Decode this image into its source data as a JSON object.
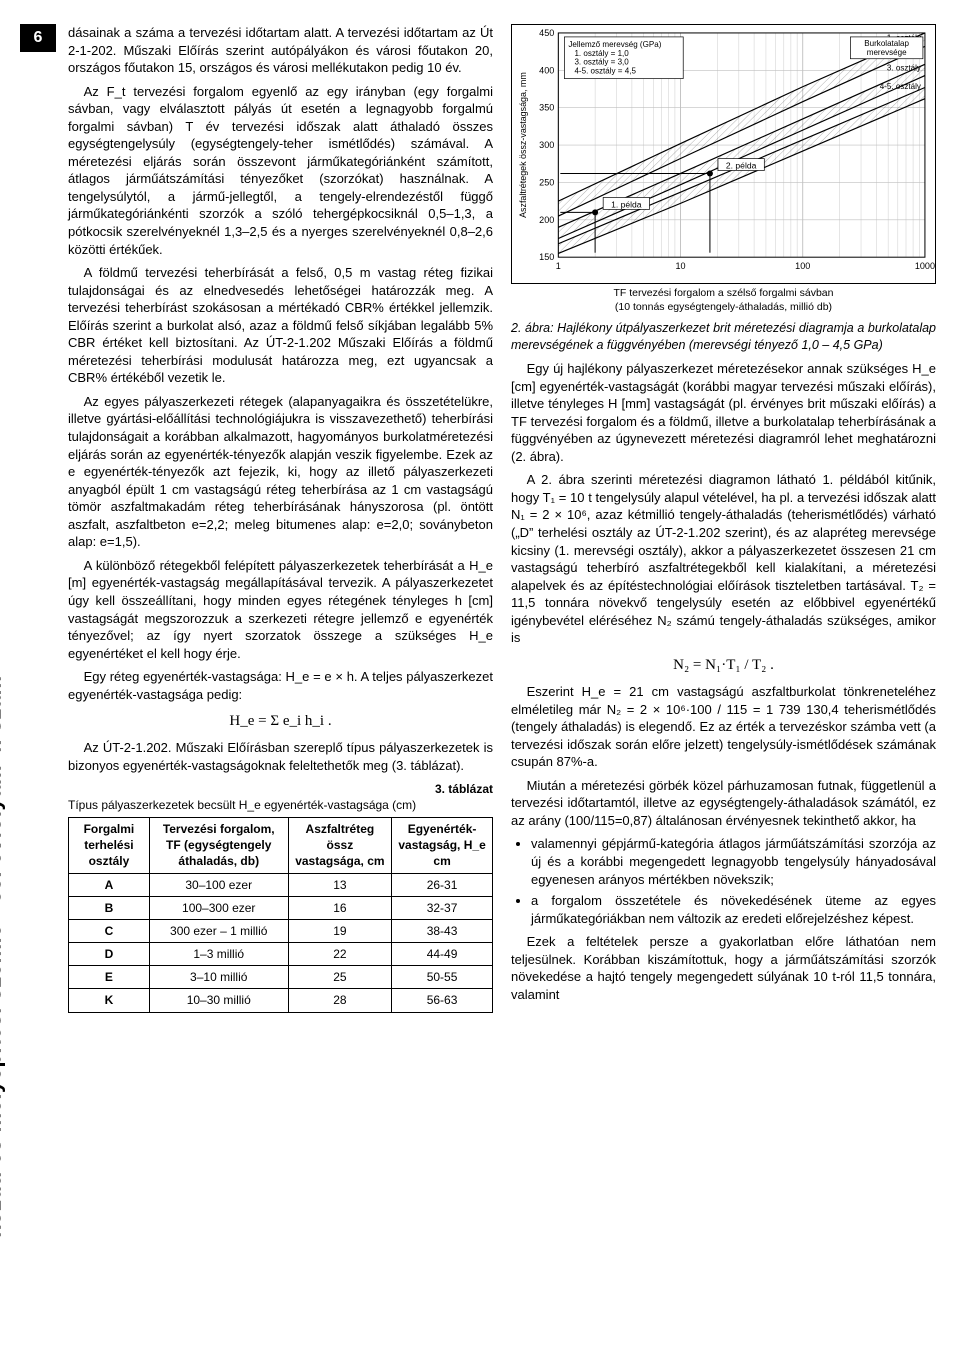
{
  "page_number": "6",
  "side_label": "közúti és mélyépítési szemle · 55. évfolyam 4. szám",
  "left": {
    "p1": "dásainak a száma a tervezési időtartam alatt. A tervezési időtartam az Út 2-1-202. Műszaki Előírás szerint autópályákon és városi főutakon 20, országos főutakon 15, országos és városi mellékutakon pedig 10 év.",
    "p2": "Az F_t tervezési forgalom egyenlő az egy irányban (egy forgalmi sávban, vagy elválasztott pályás út esetén a legnagyobb forgalmú forgalmi sávban) T év tervezési időszak alatt áthaladó összes egységtengelysúly (egységtengely-teher ismétlődés) számával. A méretezési eljárás során összevont járműkategóriánként számított, átlagos járműátszámítási tényezőket (szorzókat) használnak. A tengelysúlytól, a jármű-jellegtől, a tengely-elrendezéstől függő járműkategóriánkénti szorzók a szóló tehergépkocsiknál 0,5–1,3, a pótkocsik szerelvényeknél 1,3–2,5 és a nyerges szerelvényeknél 0,8–2,6 közötti értékűek.",
    "p3": "A földmű tervezési teherbírását a felső, 0,5 m vastag réteg fizikai tulajdonságai és az elnedvesedés lehetőségei határozzák meg. A tervezési teherbírást szokásosan a mértékadó CBR% értékkel jellemzik. Előírás szerint a burkolat alsó, azaz a földmű felső síkjában legalább 5% CBR értéket kell biztosítani. Az ÚT-2-1.202 Műszaki Előírás a földmű méretezési teherbírási modulusát határozza meg, ezt ugyancsak a CBR% értékéből vezetik le.",
    "p4": "Az egyes pályaszerkezeti rétegek (alapanyagaikra és összetételükre, illetve gyártási-előállítási technológiájukra is visszavezethető) teherbírási tulajdonságait a korábban alkalmazott, hagyományos burkolatméretezési eljárás során az egyenérték-tényezők alapján veszik figyelembe. Ezek az e egyenérték-tényezők azt fejezik, ki, hogy az illető pályaszerkezeti anyagból épült 1 cm vastagságú réteg teherbírása az 1 cm vastagságú tömör aszfaltmakadám réteg teherbírásának hányszorosa (pl. öntött aszfalt, aszfaltbeton e=2,2; meleg bitumenes alap: e=2,0; soványbeton alap: e=1,5).",
    "p5": "A különböző rétegekből felépített pályaszerkezetek teherbírását a H_e [m] egyenérték-vastagság megállapításával tervezik. A pályaszerkezetet úgy kell összeállítani, hogy minden egyes rétegének tényleges h [cm] vastagságát megszorozzuk a szerkezeti rétegre jellemző e egyenérték tényezővel; az így nyert szorzatok összege a szükséges H_e egyenértéket el kell hogy érje.",
    "p6": "Egy réteg egyenérték-vastagsága: H_e = e × h. A teljes pályaszerkezet egyenérték-vastagsága pedig:",
    "formula1": "H_e = Σ e_i h_i .",
    "p7": "Az ÚT-2-1.202. Műszaki Előírásban szereplő típus pályaszerkezetek is bizonyos egyenérték-vastagságoknak feleltethetők meg (3. táblázat).",
    "table3_caption": "3. táblázat",
    "table3_sub": "Típus pályaszerkezetek becsült H_e egyenérték-vastagsága (cm)",
    "table3": {
      "headers": [
        "Forgalmi terhelési osztály",
        "Tervezési forgalom, TF (egységtengely áthaladás, db)",
        "Aszfaltréteg össz vastagsága, cm",
        "Egyenérték-vastagság, H_e cm"
      ],
      "rows": [
        [
          "A",
          "30–100 ezer",
          "13",
          "26-31"
        ],
        [
          "B",
          "100–300 ezer",
          "16",
          "32-37"
        ],
        [
          "C",
          "300 ezer – 1 millió",
          "19",
          "38-43"
        ],
        [
          "D",
          "1–3 millió",
          "22",
          "44-49"
        ],
        [
          "E",
          "3–10 millió",
          "25",
          "50-55"
        ],
        [
          "K",
          "10–30 millió",
          "28",
          "56-63"
        ]
      ]
    }
  },
  "right": {
    "chart": {
      "type": "line-log-x",
      "y_label": "Aszfaltrétegek össz-vastagsága, mm",
      "x_label_lines": [
        "TF tervezési forgalom a szélső forgalmi sávban",
        "(10 tonnás egységtengely-áthaladás, millió db)"
      ],
      "xlim": [
        1,
        1000
      ],
      "ylim": [
        150,
        450
      ],
      "x_ticks": [
        1,
        10,
        100,
        1000
      ],
      "y_ticks": [
        150,
        200,
        250,
        300,
        350,
        400,
        450
      ],
      "legend_box1": {
        "title": "Jellemző merevség (GPa)",
        "items": [
          "1.   osztály = 1,0",
          "3.   osztály = 3,0",
          "4-5. osztály = 4,5"
        ]
      },
      "legend_box2": "Burkolatalap merevsége",
      "band_labels": [
        "1. osztály",
        "3. osztály",
        "4-5. osztály"
      ],
      "point_labels": [
        "1. példa",
        "2. példa"
      ],
      "curves": [
        {
          "name": "1_oszt_upper",
          "color": "#000000",
          "width": 1.2,
          "pts": [
            [
              1,
              225
            ],
            [
              10,
              302
            ],
            [
              100,
              378
            ],
            [
              1000,
              450
            ]
          ]
        },
        {
          "name": "1_oszt_lower",
          "color": "#000000",
          "width": 1.2,
          "pts": [
            [
              1,
              205
            ],
            [
              10,
              282
            ],
            [
              100,
              358
            ],
            [
              1000,
              432
            ]
          ]
        },
        {
          "name": "3_oszt_upper",
          "color": "#000000",
          "width": 1.2,
          "pts": [
            [
              1,
              190
            ],
            [
              10,
              262
            ],
            [
              100,
              335
            ],
            [
              1000,
              408
            ]
          ]
        },
        {
          "name": "3_oszt_lower",
          "color": "#000000",
          "width": 1.2,
          "pts": [
            [
              1,
              175
            ],
            [
              10,
              247
            ],
            [
              100,
              320
            ],
            [
              1000,
              393
            ]
          ]
        },
        {
          "name": "45_oszt_upper",
          "color": "#000000",
          "width": 1.2,
          "pts": [
            [
              1,
              168
            ],
            [
              10,
              237
            ],
            [
              100,
              307
            ],
            [
              1000,
              377
            ]
          ]
        },
        {
          "name": "45_oszt_lower",
          "color": "#000000",
          "width": 1.2,
          "pts": [
            [
              1,
              155
            ],
            [
              10,
              222
            ],
            [
              100,
              292
            ],
            [
              1000,
              362
            ]
          ]
        }
      ],
      "fills": [
        {
          "between": [
            "1_oszt_upper",
            "1_oszt_lower"
          ],
          "hatch": true
        },
        {
          "between": [
            "3_oszt_upper",
            "3_oszt_lower"
          ],
          "hatch": true
        },
        {
          "between": [
            "45_oszt_upper",
            "45_oszt_lower"
          ],
          "hatch": true
        }
      ],
      "markers": [
        {
          "label": "1. példa",
          "x": 2,
          "y": 210,
          "lead_to": [
            2,
            156
          ]
        },
        {
          "label": "2. példa",
          "x": 17.4,
          "y": 262,
          "lead_to": [
            17.4,
            156
          ]
        }
      ],
      "grid_color": "#bfbfbf",
      "background": "#ffffff",
      "axis_fontsize": 9,
      "plot_margin": {
        "l": 46,
        "r": 10,
        "t": 8,
        "b": 26
      }
    },
    "fig2_caption": "2. ábra: Hajlékony útpályaszerkezet brit méretezési diagramja a burkolatalap merevségének a függvényében (merevségi tényező 1,0 – 4,5 GPa)",
    "p1": "Egy új hajlékony pályaszerkezet méretezésekor annak szükséges H_e [cm] egyenérték-vastagságát (korábbi magyar tervezési műszaki előírás), illetve tényleges H [mm] vastagságát (pl. érvényes brit műszaki előírás) a TF tervezési forgalom és a földmű, illetve a burkolatalap teherbírásának a függvényében az úgynevezett méretezési diagramról lehet meghatározni (2. ábra).",
    "p2": "A 2. ábra szerinti méretezési diagramon látható 1. példából kitűnik, hogy T₁ = 10 t tengelysúly alapul vételével, ha pl. a tervezési időszak alatt N₁ = 2 × 10⁶, azaz kétmillió tengely-áthaladás (teherismétlődés) várható („D” terhelési osztály az ÚT-2-1.202 szerint), és az alapréteg merevsége kicsiny (1. merevségi osztály), akkor a pályaszerkezetet összesen 21 cm vastagságú teherbíró aszfaltrétegekből kell kialakítani, a méretezési alapelvek és az építéstechnológiai előírások tiszteletben tartásával. T₂ = 11,5 tonnára növekvő tengelysúly esetén az előbbivel egyenértékű igénybevétel eléréséhez N₂ számú tengely-áthaladás szükséges, amikor is",
    "formula2": "N₂ = N₁·T₁ / T₂ .",
    "p3": "Eszerint H_e = 21 cm vastagságú aszfaltburkolat tönkreneteléhez elméletileg már N₂ = 2 × 10⁶·100 / 115 = 1 739 130,4 teherismétlődés (tengely áthaladás) is elegendő. Ez az érték a tervezéskor számba vett (a tervezési időszak során előre jelzett) tengelysúly-ismétlődések számának csupán 87%-a.",
    "p4": "Miután a méretezési görbék közel párhuzamosan futnak, függetlenül a tervezési időtartamtól, illetve az egységtengely-áthaladások számától, ez az arány (100/115=0,87) általánosan érvényesnek tekinthető akkor, ha",
    "bullets": [
      "valamennyi gépjármű-kategória átlagos járműátszámítási szorzója az új és a korábbi megengedett legnagyobb tengelysúly hányadosával egyenesen arányos mértékben növekszik;",
      "a forgalom összetétele és növekedésének üteme az egyes járműkategóriákban nem változik az eredeti előrejelzéshez képest."
    ],
    "p5": "Ezek a feltételek persze a gyakorlatban előre láthatóan nem teljesülnek. Korábban kiszámítottuk, hogy a járműátszámítási szorzók növekedése a hajtó tengely megengedett súlyának 10 t-ról 11,5 tonnára, valamint"
  }
}
